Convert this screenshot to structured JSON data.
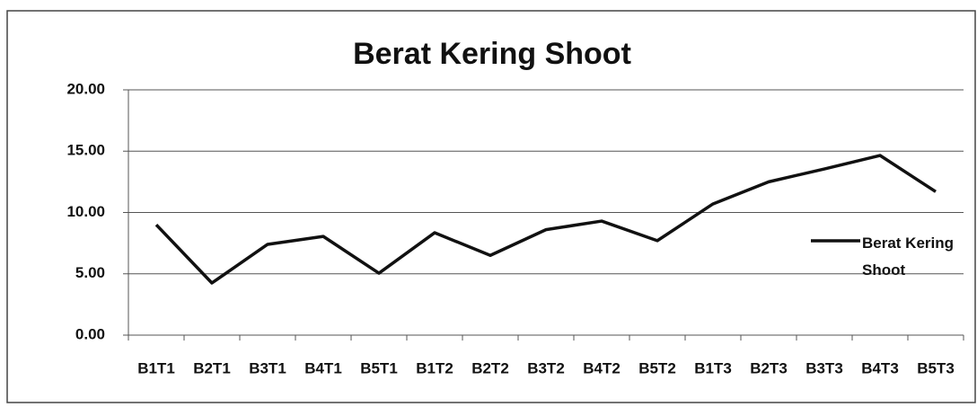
{
  "chart_data": {
    "type": "line",
    "title": "Berat Kering Shoot",
    "categories": [
      "B1T1",
      "B2T1",
      "B3T1",
      "B4T1",
      "B5T1",
      "B1T2",
      "B2T2",
      "B3T2",
      "B4T2",
      "B5T2",
      "B1T3",
      "B2T3",
      "B3T3",
      "B4T3",
      "B5T3"
    ],
    "series": [
      {
        "name": "Berat Kering Shoot",
        "color": "#111111",
        "values": [
          9.0,
          4.25,
          7.4,
          8.05,
          5.05,
          8.35,
          6.5,
          8.6,
          9.3,
          7.7,
          10.7,
          12.5,
          13.55,
          14.65,
          11.7
        ]
      }
    ],
    "ylim": [
      0,
      20
    ],
    "yticks": [
      {
        "value": 0,
        "label": "0.00"
      },
      {
        "value": 5,
        "label": "5.00"
      },
      {
        "value": 10,
        "label": "10.00"
      },
      {
        "value": 15,
        "label": "15.00"
      },
      {
        "value": 20,
        "label": "20.00"
      }
    ],
    "grid": true,
    "legend": "right"
  }
}
